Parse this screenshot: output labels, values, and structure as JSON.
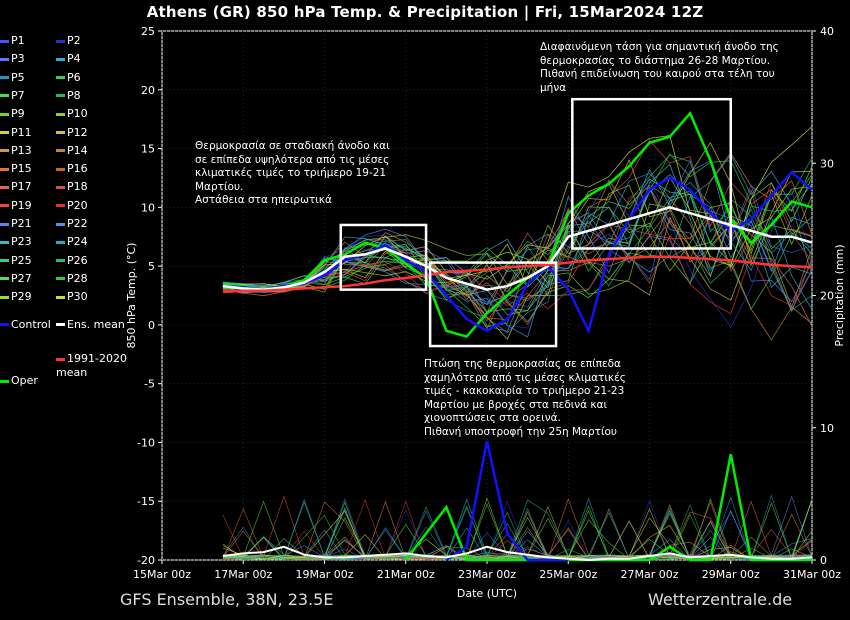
{
  "title": "Athens  (GR)  850 hPa Temp. & Precipitation | Fri, 15Mar2024 12Z",
  "footer": {
    "left": "GFS Ensemble, 38N, 23.5E",
    "right": "Wetterzentrale.de"
  },
  "legend": [
    {
      "label": "P1",
      "color": "#4455ff"
    },
    {
      "label": "P2",
      "color": "#2233cc"
    },
    {
      "label": "P3",
      "color": "#5577ff"
    },
    {
      "label": "P4",
      "color": "#33aadd"
    },
    {
      "label": "P5",
      "color": "#2299bb"
    },
    {
      "label": "P6",
      "color": "#33cc66"
    },
    {
      "label": "P7",
      "color": "#44dd44"
    },
    {
      "label": "P8",
      "color": "#22bb55"
    },
    {
      "label": "P9",
      "color": "#66dd22"
    },
    {
      "label": "P10",
      "color": "#99cc22"
    },
    {
      "label": "P11",
      "color": "#ddcc33"
    },
    {
      "label": "P12",
      "color": "#ccbb55"
    },
    {
      "label": "P13",
      "color": "#cc9944"
    },
    {
      "label": "P14",
      "color": "#bb8833"
    },
    {
      "label": "P15",
      "color": "#dd7733"
    },
    {
      "label": "P16",
      "color": "#cc6622"
    },
    {
      "label": "P17",
      "color": "#dd6655"
    },
    {
      "label": "P18",
      "color": "#cc5544"
    },
    {
      "label": "P19",
      "color": "#ee4444"
    },
    {
      "label": "P20",
      "color": "#dd3333"
    },
    {
      "label": "P21",
      "color": "#5588ee"
    },
    {
      "label": "P22",
      "color": "#4499ee"
    },
    {
      "label": "P23",
      "color": "#33bbcc"
    },
    {
      "label": "P24",
      "color": "#22aacc"
    },
    {
      "label": "P25",
      "color": "#33cc99"
    },
    {
      "label": "P26",
      "color": "#22bb77"
    },
    {
      "label": "P27",
      "color": "#55dd55"
    },
    {
      "label": "P28",
      "color": "#33cc33"
    },
    {
      "label": "P29",
      "color": "#99dd33"
    },
    {
      "label": "P30",
      "color": "#ccdd44"
    },
    {
      "label": "Control",
      "color": "#1111ff"
    },
    {
      "label": "Ens. mean",
      "color": "#ffffff"
    },
    {
      "label": "Oper",
      "color": "#00ee00"
    },
    {
      "label": "1991-2020\nmean",
      "color": "#ff3333"
    }
  ],
  "annotations": [
    {
      "text": "Θερμοκρασία σε σταδιακή άνοδο και\nσε επίπεδα υψηλότερα από τις μέσες\nκλιματικές τιμές το τριήμερο 19-21\nΜαρτίου.\nΑστάθεια στα ηπειρωτικά"
    },
    {
      "text": "Πτώση της θερμοκρασίας σε επίπεδα\nχαμηλότερα από τις μέσες κλιματικές\nτιμές - κακοκαιρία το τριήμερο 21-23\nΜαρτίου με βροχές στα πεδινά και\nχιονοπτώσεις στα ορεινά.\nΠιθανή υποστροφή την 25η Μαρτίου"
    },
    {
      "text": "Διαφαινόμενη τάση για σημαντική άνοδο της\nθερμοκρασίας το διάστημα 26-28 Μαρτίου.\nΠιθανή επιδείνωση του καιρού στα τέλη του\nμήνα"
    }
  ],
  "chart_data": {
    "type": "line",
    "title": "Athens  (GR)  850 hPa Temp. & Precipitation | Fri, 15Mar2024 12Z",
    "xlabel": "Date (UTC)",
    "ylabel": "850 hPa Temp. (°C)",
    "y2label": "Precipitation (mm)",
    "ylim": [
      -20,
      25
    ],
    "y2lim": [
      0,
      40
    ],
    "xlim": [
      0,
      16
    ],
    "x_tick_labels": [
      "15Mar 00z",
      "17Mar 00z",
      "19Mar 00z",
      "21Mar 00z",
      "23Mar 00z",
      "25Mar 00z",
      "27Mar 00z",
      "29Mar 00z",
      "31Mar 00z"
    ],
    "x_tick_days": [
      0,
      2,
      4,
      6,
      8,
      10,
      12,
      14,
      16
    ],
    "y_ticks": [
      -20,
      -15,
      -10,
      -5,
      0,
      5,
      10,
      15,
      20,
      25
    ],
    "y2_ticks": [
      0,
      10,
      20,
      30,
      40
    ],
    "grid": true,
    "legend_position": "left",
    "series": [
      {
        "name": "Oper",
        "color": "#00ee00",
        "x": [
          1.5,
          2,
          2.5,
          3,
          3.5,
          4,
          4.5,
          5,
          5.5,
          6,
          6.5,
          7,
          7.5,
          8,
          8.5,
          9,
          9.5,
          10,
          10.5,
          11,
          11.5,
          12,
          12.5,
          13,
          13.5,
          14,
          14.5,
          15,
          15.5,
          16
        ],
        "values": [
          3.5,
          3.3,
          3.0,
          3.3,
          3.8,
          5.5,
          6.0,
          7.0,
          6.5,
          5.2,
          4.0,
          -0.5,
          -1.0,
          1.0,
          2.5,
          4.0,
          5.0,
          9.5,
          11.0,
          12.0,
          13.5,
          15.5,
          16.0,
          18.0,
          14.0,
          9.0,
          7.0,
          8.5,
          10.5,
          10.0
        ]
      },
      {
        "name": "Control",
        "color": "#1111ff",
        "x": [
          1.5,
          2,
          2.5,
          3,
          3.5,
          4,
          4.5,
          5,
          5.5,
          6,
          6.5,
          7,
          7.5,
          8,
          8.5,
          9,
          9.5,
          10,
          10.5,
          11,
          11.5,
          12,
          12.5,
          13,
          13.5,
          14,
          14.5,
          15,
          15.5,
          16
        ],
        "values": [
          3.3,
          3.2,
          3.0,
          3.3,
          3.5,
          4.2,
          5.5,
          6.0,
          6.8,
          5.5,
          4.5,
          2.5,
          0.5,
          -0.5,
          0.5,
          3.5,
          5.0,
          3.0,
          -0.5,
          6.0,
          9.0,
          11.5,
          12.5,
          11.5,
          9.5,
          8.0,
          9.0,
          11.0,
          13.0,
          11.5
        ]
      },
      {
        "name": "Ens. mean",
        "color": "#ffffff",
        "x": [
          1.5,
          2,
          2.5,
          3,
          3.5,
          4,
          4.5,
          5,
          5.5,
          6,
          6.5,
          7,
          7.5,
          8,
          8.5,
          9,
          9.5,
          10,
          10.5,
          11,
          11.5,
          12,
          12.5,
          13,
          13.5,
          14,
          14.5,
          15,
          15.5,
          16
        ],
        "values": [
          3.3,
          3.1,
          3.0,
          3.2,
          3.6,
          4.5,
          5.8,
          6.0,
          6.5,
          5.8,
          5.0,
          4.0,
          3.5,
          3.0,
          3.3,
          4.0,
          5.0,
          7.5,
          8.0,
          8.5,
          9.0,
          9.5,
          10.0,
          9.5,
          9.0,
          8.5,
          8.0,
          7.5,
          7.5,
          7.0
        ]
      },
      {
        "name": "1991-2020\nmean",
        "color": "#ff3333",
        "x": [
          1.5,
          2,
          2.5,
          3,
          3.5,
          4,
          4.5,
          5,
          5.5,
          6,
          6.5,
          7,
          7.5,
          8,
          8.5,
          9,
          9.5,
          10,
          10.5,
          11,
          11.5,
          12,
          12.5,
          13,
          13.5,
          14,
          14.5,
          15,
          15.5,
          16
        ],
        "values": [
          2.8,
          2.9,
          2.9,
          3.0,
          3.1,
          3.2,
          3.3,
          3.5,
          3.8,
          4.0,
          4.2,
          4.5,
          4.6,
          4.7,
          4.9,
          5.0,
          5.1,
          5.3,
          5.5,
          5.6,
          5.7,
          5.8,
          5.8,
          5.7,
          5.6,
          5.5,
          5.3,
          5.1,
          5.0,
          4.9
        ]
      }
    ],
    "precip_series": [
      {
        "name": "Oper",
        "color": "#00ee00",
        "x": [
          6,
          6.5,
          7,
          7.5,
          8,
          8.5,
          9,
          9.5,
          10,
          12,
          12.5,
          13,
          13.5,
          14,
          14.5,
          15,
          16
        ],
        "values": [
          0,
          2,
          4,
          0,
          0,
          0,
          0,
          0,
          0,
          0,
          1,
          0,
          0,
          8,
          0,
          0,
          0
        ]
      },
      {
        "name": "Control",
        "color": "#1111ff",
        "x": [
          7,
          7.5,
          8,
          8.5,
          9,
          9.5,
          10
        ],
        "values": [
          0,
          1,
          9,
          2,
          0,
          0,
          0
        ]
      },
      {
        "name": "Ens. mean",
        "color": "#ffffff",
        "x": [
          1.5,
          2,
          2.5,
          3,
          3.5,
          4,
          4.5,
          5,
          5.5,
          6,
          6.5,
          7,
          7.5,
          8,
          8.5,
          9,
          9.5,
          10,
          10.5,
          11,
          11.5,
          12,
          12.5,
          13,
          13.5,
          14,
          14.5,
          15,
          15.5,
          16
        ],
        "values": [
          0.3,
          0.5,
          0.6,
          1.0,
          0.4,
          0.2,
          0.2,
          0.3,
          0.4,
          0.5,
          0.3,
          0.2,
          0.5,
          1.0,
          0.6,
          0.4,
          0.2,
          0.1,
          0.0,
          0.1,
          0.1,
          0.3,
          0.5,
          0.2,
          0.3,
          0.4,
          0.2,
          0.1,
          0.1,
          0.2
        ]
      }
    ],
    "boxes": [
      {
        "x": [
          4.4,
          6.5
        ],
        "y": [
          3.0,
          8.5
        ]
      },
      {
        "x": [
          6.6,
          9.7
        ],
        "y": [
          -1.8,
          5.3
        ]
      },
      {
        "x": [
          10.1,
          14.0
        ],
        "y": [
          6.5,
          19.2
        ]
      }
    ]
  }
}
